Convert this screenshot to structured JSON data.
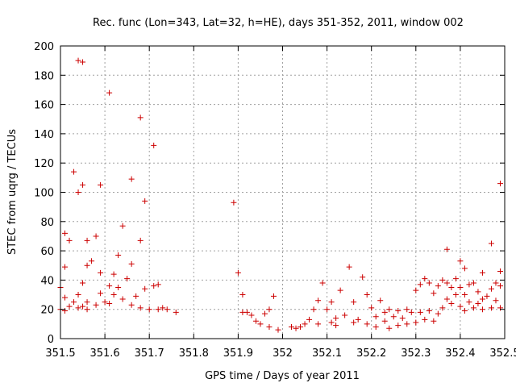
{
  "chart_data": {
    "type": "scatter",
    "title": "Rec. func (Lon=343, Lat=32, h=HE), days 351-352, 2011, window 002",
    "xlabel": "GPS time / Days of year 2011",
    "ylabel": "STEC from uqrg / TECUs",
    "xlim": [
      351.5,
      352.5
    ],
    "ylim": [
      0,
      200
    ],
    "xticks": [
      351.5,
      351.6,
      351.7,
      351.8,
      351.9,
      352,
      352.1,
      352.2,
      352.3,
      352.4,
      352.5
    ],
    "xtick_labels": [
      "351.5",
      "351.6",
      "351.7",
      "351.8",
      "351.9",
      "352",
      "352.1",
      "352.2",
      "352.3",
      "352.4",
      "352.5"
    ],
    "yticks": [
      0,
      20,
      40,
      60,
      80,
      100,
      120,
      140,
      160,
      180,
      200
    ],
    "ytick_labels": [
      "0",
      "20",
      "40",
      "60",
      "80",
      "100",
      "120",
      "140",
      "160",
      "180",
      "200"
    ],
    "grid": true,
    "marker": "+",
    "marker_color": "#cc0000",
    "points": [
      [
        351.5,
        35
      ],
      [
        351.5,
        20
      ],
      [
        351.51,
        49
      ],
      [
        351.51,
        72
      ],
      [
        351.51,
        28
      ],
      [
        351.51,
        19
      ],
      [
        351.52,
        67
      ],
      [
        351.52,
        22
      ],
      [
        351.53,
        114
      ],
      [
        351.53,
        25
      ],
      [
        351.54,
        100
      ],
      [
        351.54,
        190
      ],
      [
        351.54,
        30
      ],
      [
        351.54,
        21
      ],
      [
        351.55,
        189
      ],
      [
        351.55,
        105
      ],
      [
        351.55,
        38
      ],
      [
        351.55,
        22
      ],
      [
        351.56,
        67
      ],
      [
        351.56,
        50
      ],
      [
        351.56,
        25
      ],
      [
        351.56,
        20
      ],
      [
        351.57,
        53
      ],
      [
        351.58,
        70
      ],
      [
        351.58,
        23
      ],
      [
        351.59,
        105
      ],
      [
        351.59,
        45
      ],
      [
        351.59,
        31
      ],
      [
        351.6,
        25
      ],
      [
        351.61,
        168
      ],
      [
        351.61,
        36
      ],
      [
        351.61,
        24
      ],
      [
        351.62,
        44
      ],
      [
        351.62,
        30
      ],
      [
        351.63,
        57
      ],
      [
        351.63,
        35
      ],
      [
        351.64,
        77
      ],
      [
        351.64,
        27
      ],
      [
        351.65,
        41
      ],
      [
        351.66,
        109
      ],
      [
        351.66,
        51
      ],
      [
        351.66,
        23
      ],
      [
        351.67,
        29
      ],
      [
        351.68,
        151
      ],
      [
        351.68,
        67
      ],
      [
        351.68,
        21
      ],
      [
        351.69,
        94
      ],
      [
        351.69,
        34
      ],
      [
        351.7,
        20
      ],
      [
        351.71,
        132
      ],
      [
        351.71,
        36
      ],
      [
        351.72,
        37
      ],
      [
        351.72,
        20
      ],
      [
        351.73,
        21
      ],
      [
        351.74,
        20
      ],
      [
        351.76,
        18
      ],
      [
        351.89,
        93
      ],
      [
        351.9,
        45
      ],
      [
        351.91,
        30
      ],
      [
        351.91,
        18
      ],
      [
        351.92,
        18
      ],
      [
        351.93,
        16
      ],
      [
        351.94,
        12
      ],
      [
        351.95,
        10
      ],
      [
        351.96,
        17
      ],
      [
        351.97,
        20
      ],
      [
        351.97,
        8
      ],
      [
        351.98,
        29
      ],
      [
        351.99,
        6
      ],
      [
        352.02,
        8
      ],
      [
        352.03,
        7
      ],
      [
        352.04,
        8
      ],
      [
        352.05,
        10
      ],
      [
        352.06,
        13
      ],
      [
        352.07,
        20
      ],
      [
        352.08,
        26
      ],
      [
        352.08,
        10
      ],
      [
        352.09,
        38
      ],
      [
        352.1,
        20
      ],
      [
        352.11,
        25
      ],
      [
        352.11,
        11
      ],
      [
        352.12,
        14
      ],
      [
        352.12,
        9
      ],
      [
        352.13,
        33
      ],
      [
        352.14,
        16
      ],
      [
        352.15,
        49
      ],
      [
        352.16,
        25
      ],
      [
        352.16,
        11
      ],
      [
        352.17,
        13
      ],
      [
        352.18,
        42
      ],
      [
        352.19,
        30
      ],
      [
        352.19,
        10
      ],
      [
        352.2,
        21
      ],
      [
        352.21,
        15
      ],
      [
        352.21,
        8
      ],
      [
        352.22,
        26
      ],
      [
        352.23,
        18
      ],
      [
        352.23,
        12
      ],
      [
        352.24,
        20
      ],
      [
        352.24,
        7
      ],
      [
        352.25,
        15
      ],
      [
        352.26,
        19
      ],
      [
        352.26,
        9
      ],
      [
        352.27,
        14
      ],
      [
        352.28,
        20
      ],
      [
        352.28,
        10
      ],
      [
        352.29,
        18
      ],
      [
        352.3,
        33
      ],
      [
        352.3,
        11
      ],
      [
        352.31,
        37
      ],
      [
        352.31,
        18
      ],
      [
        352.32,
        41
      ],
      [
        352.32,
        13
      ],
      [
        352.33,
        38
      ],
      [
        352.33,
        19
      ],
      [
        352.34,
        31
      ],
      [
        352.34,
        12
      ],
      [
        352.35,
        36
      ],
      [
        352.35,
        17
      ],
      [
        352.36,
        40
      ],
      [
        352.36,
        21
      ],
      [
        352.37,
        61
      ],
      [
        352.37,
        38
      ],
      [
        352.37,
        27
      ],
      [
        352.38,
        35
      ],
      [
        352.38,
        24
      ],
      [
        352.39,
        41
      ],
      [
        352.39,
        30
      ],
      [
        352.4,
        53
      ],
      [
        352.4,
        35
      ],
      [
        352.4,
        22
      ],
      [
        352.41,
        48
      ],
      [
        352.41,
        30
      ],
      [
        352.41,
        19
      ],
      [
        352.42,
        37
      ],
      [
        352.42,
        25
      ],
      [
        352.43,
        38
      ],
      [
        352.43,
        21
      ],
      [
        352.44,
        32
      ],
      [
        352.44,
        24
      ],
      [
        352.45,
        45
      ],
      [
        352.45,
        27
      ],
      [
        352.45,
        20
      ],
      [
        352.46,
        29
      ],
      [
        352.47,
        65
      ],
      [
        352.47,
        34
      ],
      [
        352.47,
        21
      ],
      [
        352.48,
        38
      ],
      [
        352.48,
        26
      ],
      [
        352.49,
        106
      ],
      [
        352.49,
        46
      ],
      [
        352.49,
        36
      ],
      [
        352.49,
        21
      ]
    ]
  }
}
